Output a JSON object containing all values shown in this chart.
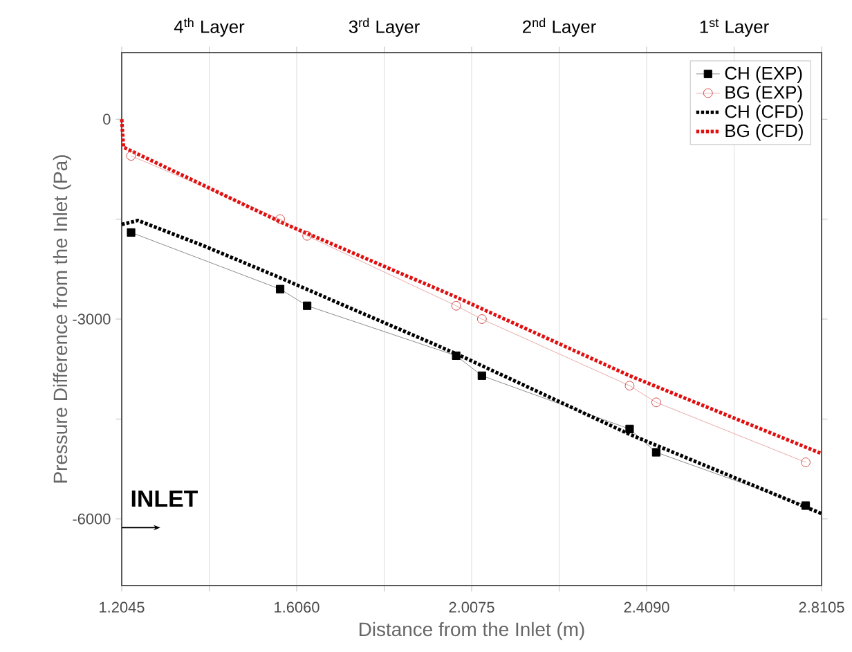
{
  "chart_data": {
    "type": "line",
    "xlabel": "Distance from the Inlet (m)",
    "ylabel": "Pressure Difference from the Inlet (Pa)",
    "annotations": [
      "4$^{th}$ Layer",
      "3$^{rd}$ Layer",
      "2$^{nd}$ Layer",
      "1$^{st}$ Layer",
      "INLET"
    ],
    "xlim": [
      1.2045,
      2.8105
    ],
    "ylim": [
      -7000,
      1000
    ],
    "xticks": [
      1.2045,
      {
        "value": 1.40525,
        "label": null
      },
      {
        "value": 1.606,
        "label": "1.6060"
      },
      {
        "value": 1.80675,
        "label": null
      },
      2.0075,
      {
        "value": 2.20825,
        "label": null
      },
      {
        "value": 2.409,
        "label": "2.4090"
      },
      {
        "value": 2.60975,
        "label": null
      },
      2.8105
    ],
    "yticks": [
      -6000,
      {
        "value": -4500,
        "label": null
      },
      -3000,
      {
        "value": -1500,
        "label": null
      },
      0
    ],
    "grid": "x",
    "legend": "top right",
    "series": [
      {
        "name": "CH (EXP)",
        "color": "#000000",
        "marker": "square",
        "line_style": "solid",
        "x": [
          1.226,
          1.568,
          1.63,
          1.972,
          2.031,
          2.37,
          2.431,
          2.774
        ],
        "values": [
          -1700,
          -2550,
          -2800,
          -3550,
          -3850,
          -4650,
          -5000,
          -5800
        ]
      },
      {
        "name": "BG (EXP)",
        "color": "#d04040",
        "marker": "circle",
        "line_style": "solid",
        "x": [
          1.226,
          1.568,
          1.63,
          1.972,
          2.031,
          2.37,
          2.431,
          2.774
        ],
        "values": [
          -550,
          -1500,
          -1750,
          -2800,
          -3000,
          -4000,
          -4250,
          -5150
        ]
      },
      {
        "name": "CH (CFD)",
        "color": "#000000",
        "marker": "none",
        "line_style": "dotted",
        "x": [
          1.2045,
          1.2415,
          1.3925,
          1.568,
          1.972,
          2.37,
          2.8105
        ],
        "values": [
          -1580,
          -1520,
          -1900,
          -2380,
          -3520,
          -4730,
          -5920
        ]
      },
      {
        "name": "BG (CFD)",
        "color": "#e01010",
        "marker": "none",
        "line_style": "dotted",
        "x": [
          1.2045,
          1.2085,
          1.568,
          1.972,
          2.37,
          2.8105
        ],
        "values": [
          0,
          -420,
          -1540,
          -2670,
          -3850,
          -5020
        ]
      }
    ]
  }
}
